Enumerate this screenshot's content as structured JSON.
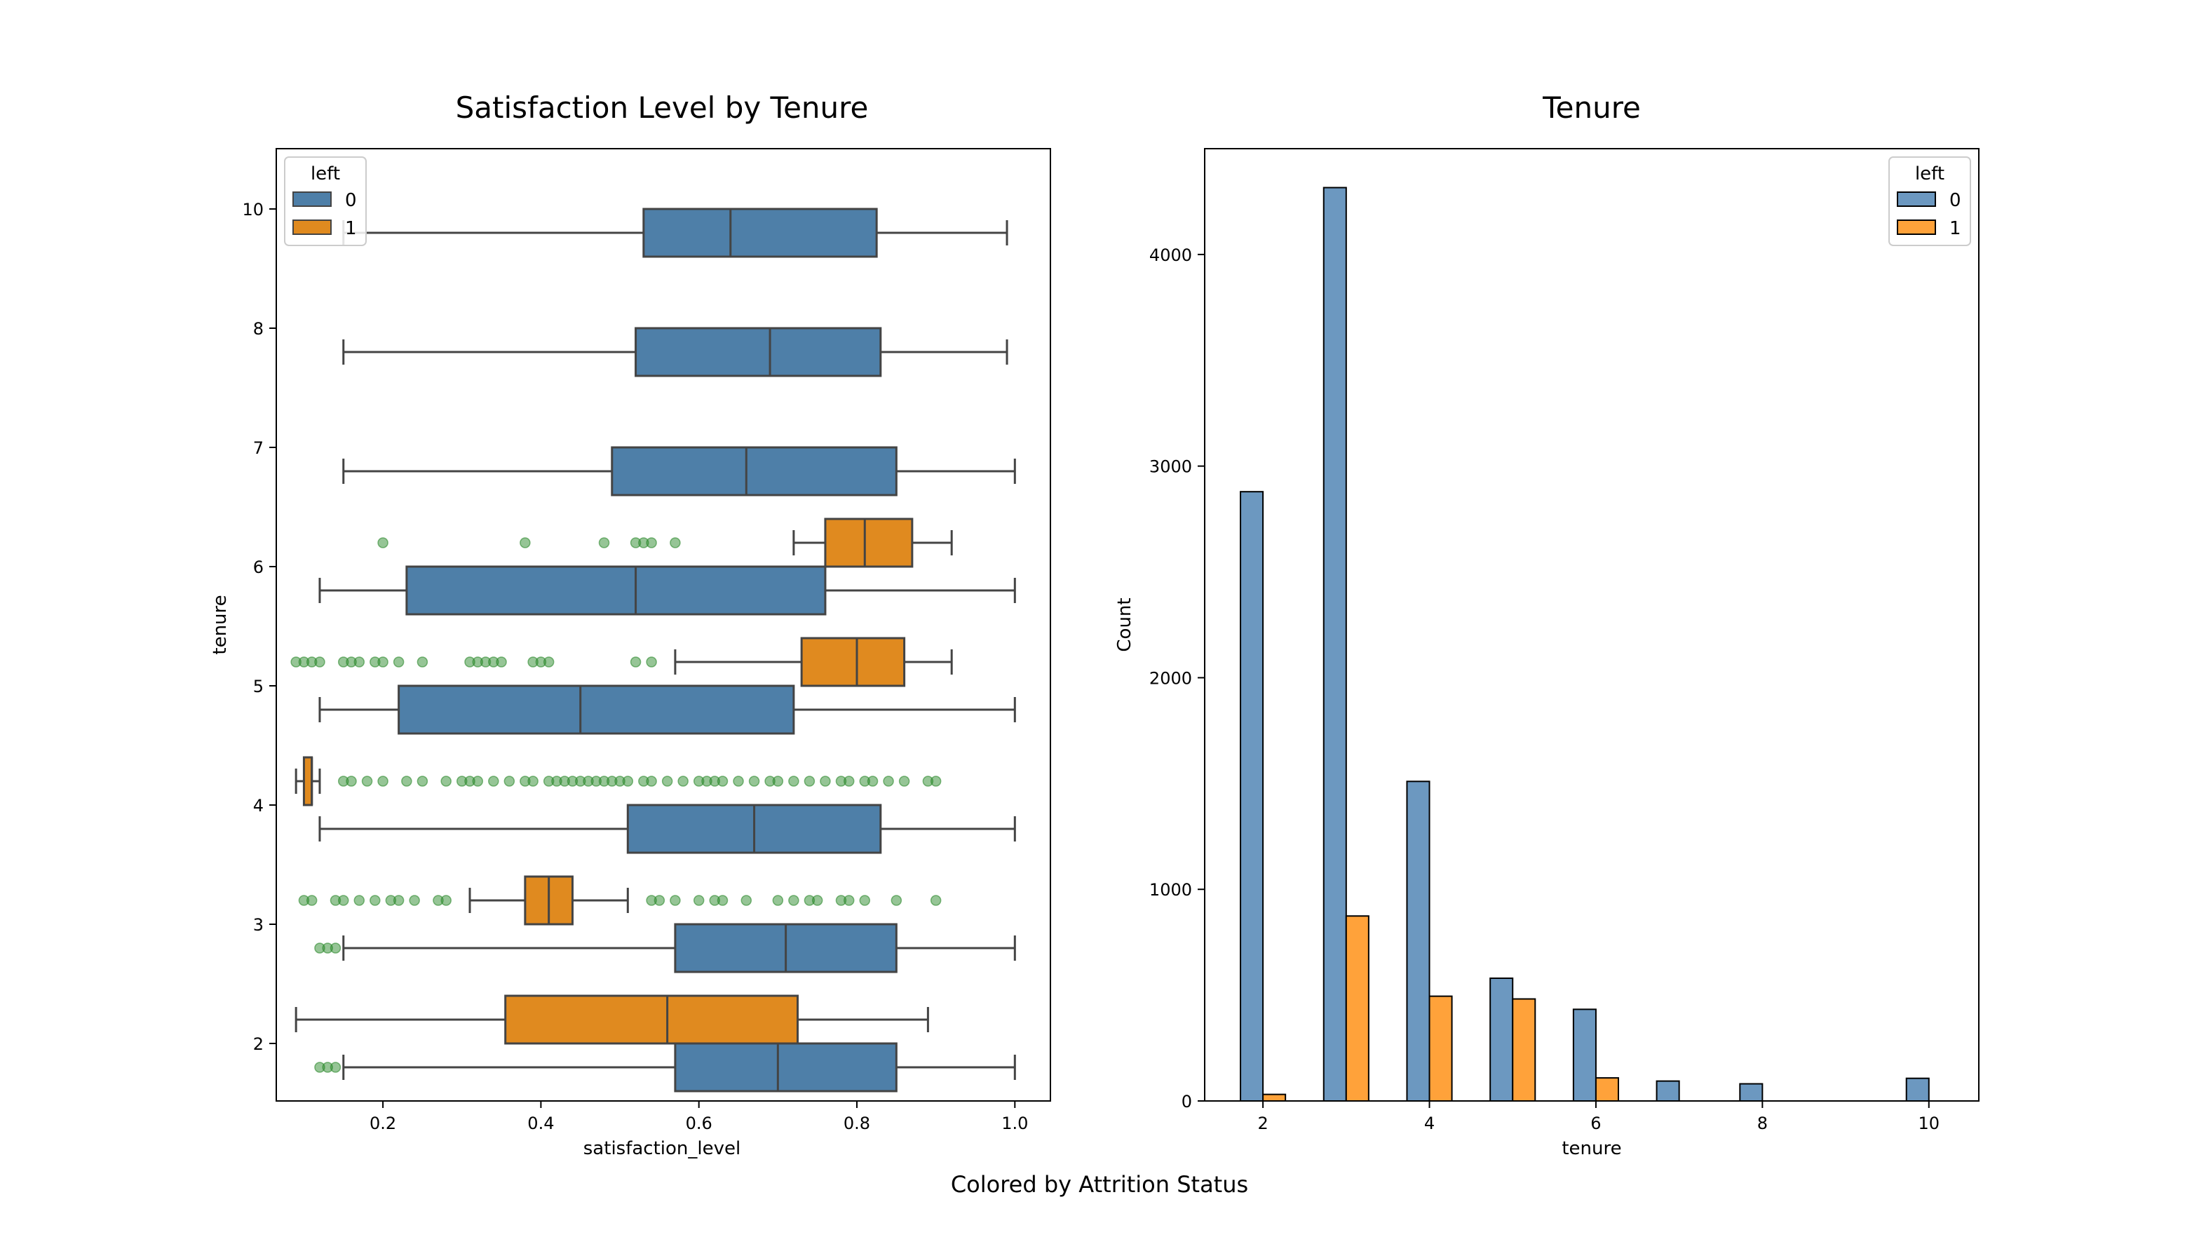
{
  "figure": {
    "caption": "Colored by Attrition Status"
  },
  "colors": {
    "stay": "#4e7fa8",
    "left": "#e08a1f",
    "hist_stay": "#6c98c0",
    "hist_left": "#ffa23a",
    "outlier": "#2e8b2e",
    "line": "#444444"
  },
  "chart_data": [
    {
      "type": "box",
      "orientation": "horizontal",
      "title": "Satisfaction Level by Tenure",
      "xlabel": "satisfaction_level",
      "ylabel": "tenure",
      "xlim": [
        0.065,
        1.045
      ],
      "x_ticks": [
        0.2,
        0.4,
        0.6,
        0.8,
        1.0
      ],
      "x_tick_labels": [
        "0.2",
        "0.4",
        "0.6",
        "0.8",
        "1.0"
      ],
      "categories": [
        "10",
        "8",
        "7",
        "6",
        "5",
        "4",
        "3",
        "2"
      ],
      "legend": {
        "title": "left",
        "entries": [
          "0",
          "1"
        ],
        "placement": "top-left"
      },
      "grid": false,
      "series": [
        {
          "name": "0",
          "boxes": [
            {
              "tenure": "10",
              "whislo": 0.15,
              "q1": 0.53,
              "med": 0.64,
              "q3": 0.825,
              "whishi": 0.99,
              "fliers": []
            },
            {
              "tenure": "8",
              "whislo": 0.15,
              "q1": 0.52,
              "med": 0.69,
              "q3": 0.83,
              "whishi": 0.99,
              "fliers": []
            },
            {
              "tenure": "7",
              "whislo": 0.15,
              "q1": 0.49,
              "med": 0.66,
              "q3": 0.85,
              "whishi": 1.0,
              "fliers": []
            },
            {
              "tenure": "6",
              "whislo": 0.12,
              "q1": 0.23,
              "med": 0.52,
              "q3": 0.76,
              "whishi": 1.0,
              "fliers": []
            },
            {
              "tenure": "5",
              "whislo": 0.12,
              "q1": 0.22,
              "med": 0.45,
              "q3": 0.72,
              "whishi": 1.0,
              "fliers": []
            },
            {
              "tenure": "4",
              "whislo": 0.12,
              "q1": 0.51,
              "med": 0.67,
              "q3": 0.83,
              "whishi": 1.0,
              "fliers": []
            },
            {
              "tenure": "3",
              "whislo": 0.15,
              "q1": 0.57,
              "med": 0.71,
              "q3": 0.85,
              "whishi": 1.0,
              "fliers": [
                0.12,
                0.13,
                0.14
              ]
            },
            {
              "tenure": "2",
              "whislo": 0.15,
              "q1": 0.57,
              "med": 0.7,
              "q3": 0.85,
              "whishi": 1.0,
              "fliers": [
                0.12,
                0.13,
                0.14
              ]
            }
          ]
        },
        {
          "name": "1",
          "boxes": [
            {
              "tenure": "6",
              "whislo": 0.72,
              "q1": 0.76,
              "med": 0.81,
              "q3": 0.87,
              "whishi": 0.92,
              "fliers": [
                0.2,
                0.38,
                0.48,
                0.52,
                0.53,
                0.54,
                0.57
              ]
            },
            {
              "tenure": "5",
              "whislo": 0.57,
              "q1": 0.73,
              "med": 0.8,
              "q3": 0.86,
              "whishi": 0.92,
              "fliers": [
                0.09,
                0.1,
                0.11,
                0.12,
                0.15,
                0.16,
                0.17,
                0.19,
                0.2,
                0.22,
                0.25,
                0.31,
                0.32,
                0.33,
                0.34,
                0.35,
                0.39,
                0.4,
                0.41,
                0.52,
                0.54
              ]
            },
            {
              "tenure": "4",
              "whislo": 0.09,
              "q1": 0.1,
              "med": 0.11,
              "q3": 0.11,
              "whishi": 0.12,
              "fliers": [
                0.15,
                0.16,
                0.18,
                0.2,
                0.23,
                0.25,
                0.28,
                0.3,
                0.31,
                0.32,
                0.34,
                0.36,
                0.38,
                0.39,
                0.41,
                0.42,
                0.43,
                0.44,
                0.45,
                0.46,
                0.47,
                0.48,
                0.49,
                0.5,
                0.51,
                0.53,
                0.54,
                0.56,
                0.58,
                0.6,
                0.61,
                0.62,
                0.63,
                0.65,
                0.67,
                0.69,
                0.7,
                0.72,
                0.74,
                0.76,
                0.78,
                0.79,
                0.81,
                0.82,
                0.84,
                0.86,
                0.89,
                0.9
              ]
            },
            {
              "tenure": "3",
              "whislo": 0.31,
              "q1": 0.38,
              "med": 0.41,
              "q3": 0.44,
              "whishi": 0.51,
              "fliers": [
                0.1,
                0.11,
                0.14,
                0.15,
                0.17,
                0.19,
                0.21,
                0.22,
                0.24,
                0.27,
                0.28,
                0.54,
                0.55,
                0.57,
                0.6,
                0.62,
                0.63,
                0.66,
                0.7,
                0.72,
                0.74,
                0.75,
                0.78,
                0.79,
                0.81,
                0.85,
                0.9
              ]
            },
            {
              "tenure": "2",
              "whislo": 0.09,
              "q1": 0.355,
              "med": 0.56,
              "q3": 0.725,
              "whishi": 0.89,
              "fliers": []
            }
          ]
        }
      ]
    },
    {
      "type": "bar",
      "title": "Tenure",
      "xlabel": "tenure",
      "ylabel": "Count",
      "xlim": [
        1.3,
        10.6
      ],
      "ylim": [
        0,
        4500
      ],
      "x_ticks": [
        2,
        4,
        6,
        8,
        10
      ],
      "y_ticks": [
        0,
        1000,
        2000,
        3000,
        4000
      ],
      "legend": {
        "title": "left",
        "entries": [
          "0",
          "1"
        ],
        "placement": "top-right"
      },
      "grid": false,
      "categories": [
        2,
        3,
        4,
        5,
        6,
        7,
        8,
        10
      ],
      "series": [
        {
          "name": "0",
          "values": [
            2879,
            4316,
            1510,
            580,
            433,
            94,
            81,
            107
          ]
        },
        {
          "name": "1",
          "values": [
            31,
            874,
            495,
            482,
            109,
            0,
            0,
            0
          ]
        }
      ]
    }
  ]
}
